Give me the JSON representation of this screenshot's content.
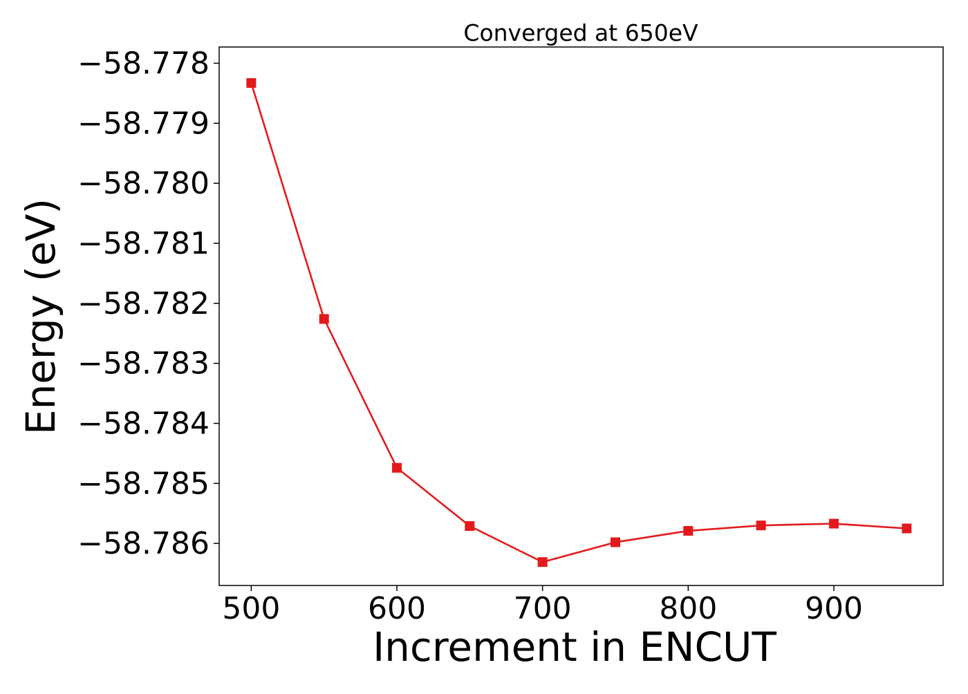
{
  "chart_data": {
    "type": "line",
    "title": "Converged at 650eV",
    "xlabel": "Increment in ENCUT",
    "ylabel": "Energy (eV)",
    "x": [
      500,
      550,
      600,
      650,
      700,
      750,
      800,
      850,
      900,
      950
    ],
    "series": [
      {
        "values": [
          -58.77833,
          -58.78226,
          -58.78474,
          -58.78571,
          -58.78631,
          -58.78598,
          -58.78579,
          -58.7857,
          -58.78567,
          -58.78575
        ],
        "color": "#e31a1c",
        "marker": "square"
      }
    ],
    "xlim": [
      478,
      975
    ],
    "ylim": [
      -58.7867,
      -58.77773
    ],
    "xticks": [
      500,
      600,
      700,
      800,
      900
    ],
    "xtick_labels": [
      "500",
      "600",
      "700",
      "800",
      "900"
    ],
    "yticks": [
      -58.778,
      -58.779,
      -58.78,
      -58.781,
      -58.782,
      -58.783,
      -58.784,
      -58.785,
      -58.786
    ],
    "ytick_labels": [
      "−58.778",
      "−58.779",
      "−58.780",
      "−58.781",
      "−58.782",
      "−58.783",
      "−58.784",
      "−58.785",
      "−58.786"
    ],
    "grid": false,
    "legend": "none"
  }
}
